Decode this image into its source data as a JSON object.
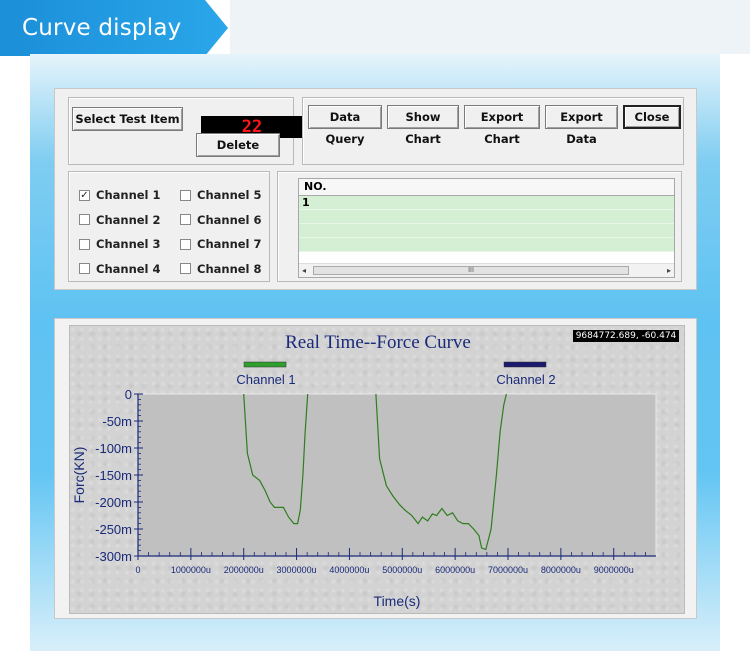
{
  "banner": {
    "title": "Curve display"
  },
  "controls": {
    "select_label": "Select Test Item",
    "counter_value": "22",
    "delete_label": "Delete",
    "buttons": [
      "Data Query",
      "Show Chart",
      "Export Chart",
      "Export Data",
      "Close"
    ],
    "channels": [
      {
        "label": "Channel 1",
        "checked": true
      },
      {
        "label": "Channel 2",
        "checked": false
      },
      {
        "label": "Channel 3",
        "checked": false
      },
      {
        "label": "Channel 4",
        "checked": false
      },
      {
        "label": "Channel 5",
        "checked": false
      },
      {
        "label": "Channel 6",
        "checked": false
      },
      {
        "label": "Channel 7",
        "checked": false
      },
      {
        "label": "Channel 8",
        "checked": false
      }
    ],
    "grid": {
      "header": "NO.",
      "rows": [
        "1",
        "",
        "",
        ""
      ],
      "scroll_thumb": "III"
    }
  },
  "chart": {
    "coord_readout": "9684772.689, -60.474"
  },
  "chart_data": {
    "type": "line",
    "title": "Real Time--Force Curve",
    "xlabel": "Time(s)",
    "ylabel": "Forc(KN)",
    "xlim": [
      0,
      9800000
    ],
    "ylim": [
      -300,
      0
    ],
    "xticks": [
      {
        "v": 0,
        "label": "0"
      },
      {
        "v": 1000000,
        "label": "1000000u"
      },
      {
        "v": 2000000,
        "label": "2000000u"
      },
      {
        "v": 3000000,
        "label": "3000000u"
      },
      {
        "v": 4000000,
        "label": "4000000u"
      },
      {
        "v": 5000000,
        "label": "5000000u"
      },
      {
        "v": 6000000,
        "label": "6000000u"
      },
      {
        "v": 7000000,
        "label": "7000000u"
      },
      {
        "v": 8000000,
        "label": "8000000u"
      },
      {
        "v": 9000000,
        "label": "9000000u"
      }
    ],
    "yticks": [
      {
        "v": 0,
        "label": "0"
      },
      {
        "v": -50,
        "label": "-50m"
      },
      {
        "v": -100,
        "label": "-100m"
      },
      {
        "v": -150,
        "label": "-150m"
      },
      {
        "v": -200,
        "label": "-200m"
      },
      {
        "v": -250,
        "label": "-250m"
      },
      {
        "v": -300,
        "label": "-300m"
      }
    ],
    "grid": false,
    "legend": [
      {
        "name": "Channel 1",
        "color": "#2e9e2e"
      },
      {
        "name": "Channel 2",
        "color": "#1a1a6e"
      }
    ],
    "series": [
      {
        "name": "Channel 1",
        "color": "#2e7d1e",
        "x": [
          2000000,
          2070000,
          2170000,
          2300000,
          2400000,
          2500000,
          2580000,
          2750000,
          2850000,
          2950000,
          3020000,
          3070000,
          3120000,
          3160000,
          3210000
        ],
        "y": [
          0,
          -110,
          -150,
          -160,
          -178,
          -200,
          -210,
          -210,
          -228,
          -240,
          -240,
          -215,
          -150,
          -75,
          0
        ]
      },
      {
        "name": "Channel 1",
        "color": "#2e7d1e",
        "x": [
          4500000,
          4570000,
          4700000,
          4830000,
          4950000,
          5050000,
          5180000,
          5300000,
          5380000,
          5480000,
          5570000,
          5650000,
          5750000,
          5850000,
          5950000,
          6050000,
          6150000,
          6250000,
          6350000,
          6450000,
          6500000,
          6580000,
          6680000,
          6780000,
          6850000,
          6920000,
          6970000
        ],
        "y": [
          0,
          -120,
          -170,
          -190,
          -205,
          -215,
          -225,
          -240,
          -228,
          -235,
          -222,
          -225,
          -212,
          -225,
          -220,
          -235,
          -240,
          -240,
          -250,
          -262,
          -285,
          -288,
          -250,
          -150,
          -70,
          -20,
          0
        ]
      }
    ]
  }
}
